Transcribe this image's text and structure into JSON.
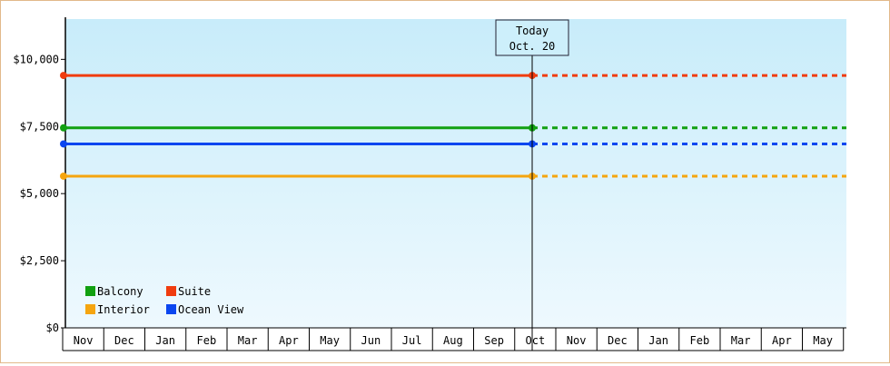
{
  "chart_data": {
    "type": "line",
    "title": "",
    "xlabel": "",
    "ylabel": "",
    "ylim": [
      0,
      11500
    ],
    "yticks": [
      0,
      2500,
      5000,
      7500,
      10000
    ],
    "ytick_labels": [
      "$0",
      "$2,500",
      "$5,000",
      "$7,500",
      "$10,000"
    ],
    "x_months": [
      "Nov",
      "Dec",
      "Jan",
      "Feb",
      "Mar",
      "Apr",
      "May",
      "Jun",
      "Jul",
      "Aug",
      "Sep",
      "Oct",
      "Nov",
      "Dec",
      "Jan",
      "Feb",
      "Mar",
      "Apr",
      "May"
    ],
    "today_marker": {
      "line1": "Today",
      "line2": "Oct. 20"
    },
    "grid": false,
    "legend_position": "bottom-left",
    "series": [
      {
        "name": "Suite",
        "color": "#f03c0f",
        "history_value": 9400,
        "projected_value": 9400
      },
      {
        "name": "Balcony",
        "color": "#11a011",
        "history_value": 7450,
        "projected_value": 7450
      },
      {
        "name": "Ocean View",
        "color": "#0a46f0",
        "history_value": 6850,
        "projected_value": 6850
      },
      {
        "name": "Interior",
        "color": "#f5a50f",
        "history_value": 5650,
        "projected_value": 5650
      }
    ],
    "legend_order": [
      "Balcony",
      "Suite",
      "Interior",
      "Ocean View"
    ]
  }
}
